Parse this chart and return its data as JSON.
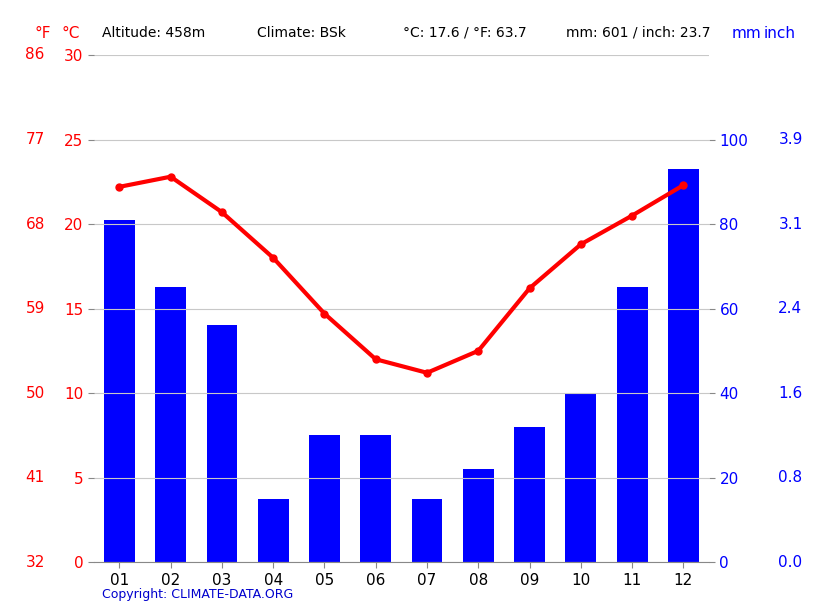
{
  "months": [
    "01",
    "02",
    "03",
    "04",
    "05",
    "06",
    "07",
    "08",
    "09",
    "10",
    "11",
    "12"
  ],
  "precipitation_mm": [
    81,
    65,
    56,
    15,
    30,
    30,
    15,
    22,
    32,
    40,
    65,
    93
  ],
  "temperature_c": [
    22.2,
    22.8,
    20.7,
    18.0,
    14.7,
    12.0,
    11.2,
    12.5,
    16.2,
    18.8,
    20.5,
    22.3
  ],
  "left_axis_F": [
    32,
    41,
    50,
    59,
    68,
    77,
    86
  ],
  "left_axis_C": [
    0,
    5,
    10,
    15,
    20,
    25,
    30
  ],
  "right_axis_mm": [
    0,
    20,
    40,
    60,
    80,
    100
  ],
  "right_axis_inch": [
    "0.0",
    "0.8",
    "1.6",
    "2.4",
    "3.1",
    "3.9"
  ],
  "bar_color": "#0000ff",
  "line_color": "#ff0000",
  "background_color": "#ffffff",
  "grid_color": "#c8c8c8",
  "copyright_text": "Copyright: CLIMATE-DATA.ORG",
  "copyright_color": "#0000cd",
  "temp_ylim_c": [
    0,
    30
  ],
  "precip_ylim_mm": [
    0,
    120
  ],
  "line_width": 3.0,
  "marker_size": 5
}
